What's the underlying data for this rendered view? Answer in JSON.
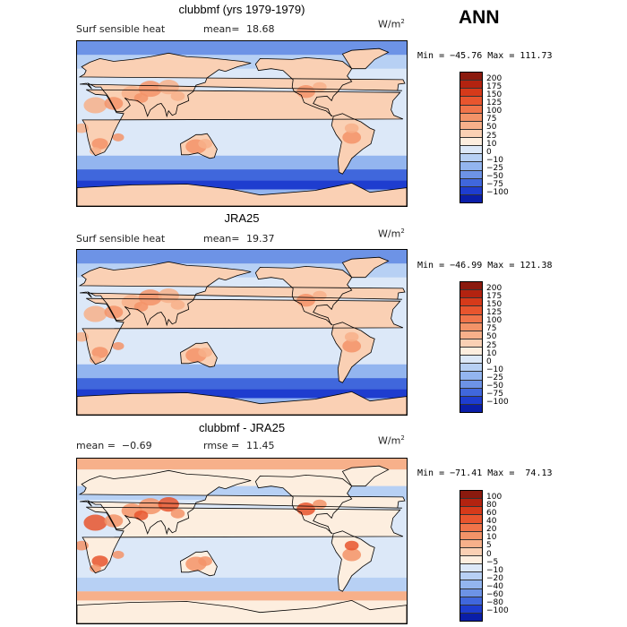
{
  "season": "ANN",
  "panels": [
    {
      "title": "clubbmf (yrs 1979-1979)",
      "left_text": "Surf sensible heat",
      "mean_label": "mean=",
      "mean_value": "18.68",
      "units": "W/m",
      "units_exp": "2",
      "min_max": "Min = −45.76 Max = 111.73",
      "colorbar_labels": [
        "200",
        "175",
        "150",
        "125",
        "100",
        "75",
        "50",
        "25",
        "10",
        "0",
        "−10",
        "−25",
        "−50",
        "−75",
        "−100"
      ],
      "colors": [
        "#8b1a0e",
        "#b32310",
        "#d63a1a",
        "#e8552e",
        "#f0744a",
        "#f39368",
        "#f7b08a",
        "#fad0b4",
        "#fdeedf",
        "#dce8f8",
        "#b7d0f4",
        "#93b5ef",
        "#6d93e6",
        "#4067dc",
        "#1e3dcf",
        "#0a1ea8"
      ]
    },
    {
      "title": "JRA25",
      "left_text": "Surf sensible heat",
      "mean_label": "mean=",
      "mean_value": "19.37",
      "units": "W/m",
      "units_exp": "2",
      "min_max": "Min = −46.99 Max = 121.38",
      "colorbar_labels": [
        "200",
        "175",
        "150",
        "125",
        "100",
        "75",
        "50",
        "25",
        "10",
        "0",
        "−10",
        "−25",
        "−50",
        "−75",
        "−100"
      ],
      "colors": [
        "#8b1a0e",
        "#b32310",
        "#d63a1a",
        "#e8552e",
        "#f0744a",
        "#f39368",
        "#f7b08a",
        "#fad0b4",
        "#fdeedf",
        "#dce8f8",
        "#b7d0f4",
        "#93b5ef",
        "#6d93e6",
        "#4067dc",
        "#1e3dcf",
        "#0a1ea8"
      ]
    },
    {
      "title": "clubbmf - JRA25",
      "left_text": "mean =  −0.69",
      "mean_label": "rmse =",
      "mean_value": "11.45",
      "units": "W/m",
      "units_exp": "2",
      "min_max": "Min = −71.41 Max =  74.13",
      "colorbar_labels": [
        "100",
        "80",
        "60",
        "40",
        "20",
        "10",
        "5",
        "0",
        "−5",
        "−10",
        "−20",
        "−40",
        "−60",
        "−80",
        "−100"
      ],
      "colors": [
        "#8b1a0e",
        "#b32310",
        "#d63a1a",
        "#e8552e",
        "#f0744a",
        "#f39368",
        "#f7b08a",
        "#fad0b4",
        "#fdeedf",
        "#dce8f8",
        "#b7d0f4",
        "#93b5ef",
        "#6d93e6",
        "#4067dc",
        "#1e3dcf",
        "#0a1ea8"
      ]
    }
  ]
}
